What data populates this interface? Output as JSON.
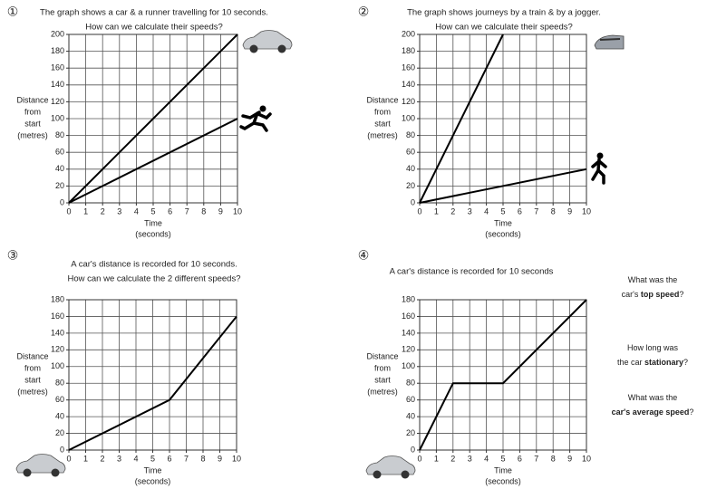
{
  "chart_data": [
    {
      "type": "line",
      "label": "①",
      "title": [
        "The graph shows a car & a runner travelling for 10 seconds.",
        "How can we calculate their speeds?"
      ],
      "ylabel": [
        "Distance",
        "from",
        "start",
        "(metres)"
      ],
      "xlabel": [
        "Time",
        "(seconds)"
      ],
      "xlim": [
        0,
        10
      ],
      "xticks": [
        0,
        1,
        2,
        3,
        4,
        5,
        6,
        7,
        8,
        9,
        10
      ],
      "ylim": [
        0,
        200
      ],
      "yticks": [
        0,
        20,
        40,
        60,
        80,
        100,
        120,
        140,
        160,
        180,
        200
      ],
      "grid": true,
      "series": [
        {
          "color": "#000000",
          "x": [
            0,
            10
          ],
          "values": [
            0,
            200
          ]
        },
        {
          "color": "#000000",
          "x": [
            0,
            10
          ],
          "values": [
            0,
            100
          ]
        }
      ]
    },
    {
      "type": "line",
      "label": "②",
      "title": [
        "The graph shows journeys by a train & by a jogger.",
        "How can we calculate their speeds?"
      ],
      "ylabel": [
        "Distance",
        "from",
        "start",
        "(metres)"
      ],
      "xlabel": [
        "Time",
        "(seconds)"
      ],
      "xlim": [
        0,
        10
      ],
      "xticks": [
        0,
        1,
        2,
        3,
        4,
        5,
        6,
        7,
        8,
        9,
        10
      ],
      "ylim": [
        0,
        200
      ],
      "yticks": [
        0,
        20,
        40,
        60,
        80,
        100,
        120,
        140,
        160,
        180,
        200
      ],
      "grid": true,
      "series": [
        {
          "color": "#000000",
          "x": [
            0,
            5
          ],
          "values": [
            0,
            200
          ]
        },
        {
          "color": "#000000",
          "x": [
            0,
            10
          ],
          "values": [
            0,
            40
          ]
        }
      ]
    },
    {
      "type": "line",
      "label": "③",
      "title": [
        "A car's distance is recorded for 10 seconds.",
        "How can we calculate the 2 different speeds?"
      ],
      "ylabel": [
        "Distance",
        "from",
        "start",
        "(metres)"
      ],
      "xlabel": [
        "Time",
        "(seconds)"
      ],
      "xlim": [
        0,
        10
      ],
      "xticks": [
        0,
        1,
        2,
        3,
        4,
        5,
        6,
        7,
        8,
        9,
        10
      ],
      "ylim": [
        0,
        180
      ],
      "yticks": [
        0,
        20,
        40,
        60,
        80,
        100,
        120,
        140,
        160,
        180
      ],
      "grid": true,
      "series": [
        {
          "color": "#000000",
          "x": [
            0,
            6,
            10
          ],
          "values": [
            0,
            60,
            160
          ]
        }
      ]
    },
    {
      "type": "line",
      "label": "④",
      "title": [
        "A car's distance is recorded for 10 seconds"
      ],
      "ylabel": [
        "Distance",
        "from",
        "start",
        "(metres)"
      ],
      "xlabel": [
        "Time",
        "(seconds)"
      ],
      "xlim": [
        0,
        10
      ],
      "xticks": [
        0,
        1,
        2,
        3,
        4,
        5,
        6,
        7,
        8,
        9,
        10
      ],
      "ylim": [
        0,
        180
      ],
      "yticks": [
        0,
        20,
        40,
        60,
        80,
        100,
        120,
        140,
        160,
        180
      ],
      "grid": true,
      "series": [
        {
          "color": "#000000",
          "x": [
            0,
            2,
            5,
            10
          ],
          "values": [
            0,
            80,
            80,
            180
          ]
        }
      ],
      "questions": [
        [
          [
            {
              "text": "What was the",
              "bold": false
            }
          ],
          [
            {
              "text": "car's ",
              "bold": false
            },
            {
              "text": "top speed",
              "bold": true
            },
            {
              "text": "?",
              "bold": false
            }
          ]
        ],
        [
          [
            {
              "text": "How long was",
              "bold": false
            }
          ],
          [
            {
              "text": "the car ",
              "bold": false
            },
            {
              "text": "stationary",
              "bold": true
            },
            {
              "text": "?",
              "bold": false
            }
          ]
        ],
        [
          [
            {
              "text": "What was the",
              "bold": false
            }
          ],
          [
            {
              "text": "car's average speed",
              "bold": true
            },
            {
              "text": "?",
              "bold": false
            }
          ]
        ]
      ]
    }
  ]
}
